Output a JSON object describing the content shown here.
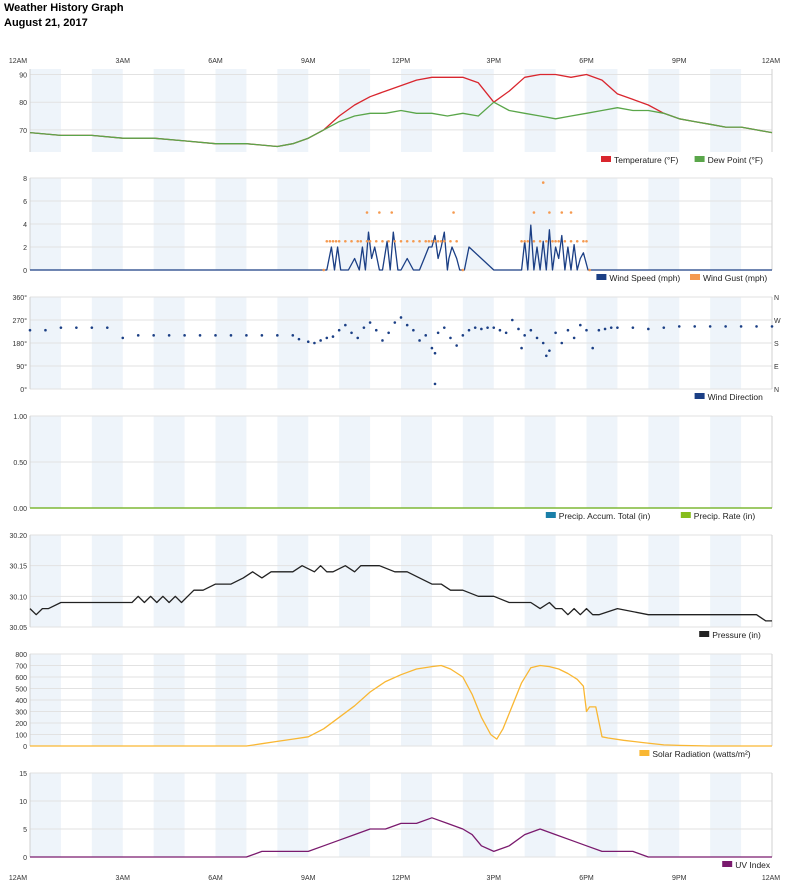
{
  "header": {
    "title": "Weather History Graph",
    "date": "August 21, 2017"
  },
  "colors": {
    "temperature": "#d9262e",
    "dew_point": "#5aa64a",
    "wind_speed": "#1b3f85",
    "wind_gust": "#f59a50",
    "wind_direction": "#1b3f85",
    "precip_total": "#1a7fa8",
    "precip_rate": "#86bd1c",
    "pressure": "#222222",
    "solar": "#f9b733",
    "uv": "#7a1a6e",
    "band": "#eef4fa",
    "grid": "#e2e2e2"
  },
  "chart_data": [
    {
      "id": "temp",
      "type": "line",
      "x_ticks": [
        "12AM",
        "3AM",
        "6AM",
        "9AM",
        "12PM",
        "3PM",
        "6PM",
        "9PM",
        "12AM"
      ],
      "y_ticks": [
        "90",
        "80",
        "70"
      ],
      "ylim": [
        62,
        92
      ],
      "series": [
        {
          "name": "Temperature (°F)",
          "color_key": "temperature",
          "x": [
            0,
            1,
            2,
            3,
            4,
            5,
            6,
            7,
            8,
            8.5,
            9,
            9.5,
            10,
            10.5,
            11,
            11.5,
            12,
            12.5,
            13,
            13.5,
            14,
            14.5,
            15,
            15.5,
            16,
            16.5,
            17,
            17.5,
            18,
            18.5,
            19,
            19.5,
            20,
            20.5,
            21,
            21.5,
            22,
            22.5,
            23,
            23.5,
            24
          ],
          "y": [
            69,
            68,
            68,
            67,
            67,
            66,
            65,
            65,
            64,
            65,
            67,
            70,
            75,
            79,
            82,
            84,
            86,
            88,
            89,
            89,
            89,
            87,
            80,
            84,
            89,
            90,
            90,
            89,
            90,
            88,
            83,
            81,
            79,
            76,
            74,
            73,
            72,
            71,
            71,
            70,
            69
          ]
        },
        {
          "name": "Dew Point (°F)",
          "color_key": "dew_point",
          "x": [
            0,
            1,
            2,
            3,
            4,
            5,
            6,
            7,
            8,
            8.5,
            9,
            9.5,
            10,
            10.5,
            11,
            11.5,
            12,
            12.5,
            13,
            13.5,
            14,
            14.5,
            15,
            15.5,
            16,
            16.5,
            17,
            17.5,
            18,
            18.5,
            19,
            19.5,
            20,
            20.5,
            21,
            21.5,
            22,
            22.5,
            23,
            23.5,
            24
          ],
          "y": [
            69,
            68,
            68,
            67,
            67,
            66,
            65,
            65,
            64,
            65,
            67,
            70,
            73,
            75,
            76,
            76,
            77,
            76,
            76,
            75,
            76,
            75,
            80,
            77,
            76,
            75,
            74,
            75,
            76,
            77,
            78,
            77,
            77,
            76,
            74,
            73,
            72,
            71,
            71,
            70,
            69
          ]
        }
      ]
    },
    {
      "id": "wind",
      "type": "line",
      "x_ticks": [
        "12AM",
        "3AM",
        "6AM",
        "9AM",
        "12PM",
        "3PM",
        "6PM",
        "9PM",
        "12AM"
      ],
      "y_ticks": [
        "8",
        "6",
        "4",
        "2",
        "0"
      ],
      "ylim": [
        0,
        8
      ],
      "series": [
        {
          "name": "Wind Speed (mph)",
          "color_key": "wind_speed",
          "x": [
            0,
            9.6,
            9.75,
            9.85,
            9.95,
            10.05,
            10.3,
            10.5,
            10.65,
            10.75,
            10.85,
            10.95,
            11.05,
            11.15,
            11.3,
            11.4,
            11.55,
            11.65,
            11.75,
            11.9,
            12,
            12.2,
            12.4,
            12.6,
            12.75,
            12.9,
            13,
            13.1,
            13.2,
            13.3,
            13.4,
            13.5,
            13.55,
            13.65,
            13.8,
            13.9,
            14.05,
            14.2,
            15,
            15.9,
            16,
            16.1,
            16.2,
            16.3,
            16.4,
            16.5,
            16.6,
            16.7,
            16.8,
            16.9,
            17,
            17.1,
            17.2,
            17.3,
            17.4,
            17.5,
            17.6,
            17.7,
            17.8,
            17.9,
            18.05,
            18.2,
            24
          ],
          "y": [
            0,
            0,
            2,
            0,
            2,
            0,
            0,
            1,
            0,
            2,
            0,
            3.3,
            1,
            2,
            0,
            0,
            2.5,
            0,
            3.3,
            0,
            0,
            1,
            0,
            0,
            1,
            2,
            2,
            3,
            1,
            2,
            3.3,
            0,
            1,
            2,
            1,
            0,
            0,
            2,
            0,
            0,
            2.5,
            0,
            3.9,
            0,
            2,
            0,
            2.5,
            0,
            3.5,
            0,
            2,
            1,
            3,
            0,
            2,
            0,
            2.2,
            0,
            1,
            1.5,
            0,
            0,
            0
          ]
        },
        {
          "name": "Wind Gust (mph)",
          "color_key": "wind_gust",
          "markers": true,
          "x": [
            9.5,
            9.6,
            9.7,
            9.8,
            9.9,
            10.0,
            10.2,
            10.4,
            10.6,
            10.7,
            10.9,
            11.0,
            11.2,
            11.4,
            11.6,
            11.8,
            12.0,
            12.2,
            12.4,
            12.6,
            12.8,
            12.9,
            13.0,
            13.1,
            13.2,
            13.3,
            13.4,
            13.6,
            13.8,
            14.0,
            15.9,
            16.0,
            16.1,
            16.3,
            16.5,
            16.7,
            16.9,
            17.1,
            17.3,
            17.5,
            17.7,
            17.9,
            18.0,
            18.1,
            11.3,
            10.9,
            11.7,
            13.7,
            16.3,
            16.8,
            16.6,
            17.2,
            17.5,
            17.0
          ],
          "y": [
            0,
            2.5,
            2.5,
            2.5,
            2.5,
            2.5,
            2.5,
            2.5,
            2.5,
            2.5,
            2.5,
            2.5,
            2.5,
            2.5,
            2.5,
            2.5,
            2.5,
            2.5,
            2.5,
            2.5,
            2.5,
            2.5,
            2.5,
            2.5,
            2.5,
            2.5,
            2.5,
            2.5,
            2.5,
            0,
            2.5,
            2.5,
            2.5,
            2.5,
            2.5,
            2.5,
            2.5,
            2.5,
            2.5,
            2.5,
            2.5,
            2.5,
            2.5,
            0,
            5,
            5,
            5,
            5,
            5,
            5,
            7.6,
            5,
            5,
            2.5
          ]
        }
      ]
    },
    {
      "id": "direction",
      "type": "scatter",
      "x_ticks": [
        "12AM",
        "3AM",
        "6AM",
        "9AM",
        "12PM",
        "3PM",
        "6PM",
        "9PM",
        "12AM"
      ],
      "y_ticks": [
        "360°",
        "270°",
        "180°",
        "90°",
        "0°"
      ],
      "y_ticks_right": [
        "N",
        "W",
        "S",
        "E",
        "N"
      ],
      "ylim": [
        0,
        360
      ],
      "series": [
        {
          "name": "Wind Direction",
          "color_key": "wind_direction",
          "x": [
            0,
            0.5,
            1,
            1.5,
            2,
            2.5,
            3,
            3.5,
            4,
            4.5,
            5,
            5.5,
            6,
            6.5,
            7,
            7.5,
            8,
            8.5,
            8.7,
            9,
            9.2,
            9.4,
            9.6,
            9.8,
            10,
            10.2,
            10.4,
            10.6,
            10.8,
            11,
            11.2,
            11.4,
            11.6,
            11.8,
            12,
            12.2,
            12.4,
            12.6,
            12.8,
            13,
            13.1,
            13.2,
            13.4,
            13.6,
            13.8,
            14,
            14.2,
            14.4,
            14.6,
            14.8,
            15,
            15.2,
            15.4,
            15.6,
            15.8,
            16,
            16.2,
            16.4,
            16.6,
            16.8,
            17,
            17.2,
            17.4,
            17.6,
            17.8,
            18,
            18.2,
            18.4,
            18.6,
            18.8,
            19,
            19.5,
            20,
            20.5,
            21,
            21.5,
            22,
            22.5,
            23,
            23.5,
            24,
            16.7,
            13.1,
            15.9
          ],
          "y": [
            230,
            230,
            240,
            240,
            240,
            240,
            200,
            210,
            210,
            210,
            210,
            210,
            210,
            210,
            210,
            210,
            210,
            210,
            195,
            185,
            180,
            190,
            200,
            205,
            230,
            250,
            220,
            200,
            240,
            260,
            230,
            190,
            220,
            260,
            280,
            250,
            230,
            190,
            210,
            160,
            20,
            220,
            240,
            200,
            170,
            210,
            230,
            240,
            235,
            240,
            240,
            230,
            220,
            270,
            235,
            210,
            230,
            200,
            180,
            150,
            220,
            180,
            230,
            200,
            250,
            230,
            160,
            230,
            235,
            240,
            240,
            240,
            235,
            240,
            245,
            245,
            245,
            245,
            245,
            245,
            245,
            130,
            140,
            160
          ]
        }
      ]
    },
    {
      "id": "precip",
      "type": "line",
      "x_ticks": [
        "12AM",
        "3AM",
        "6AM",
        "9AM",
        "12PM",
        "3PM",
        "6PM",
        "9PM",
        "12AM"
      ],
      "y_ticks": [
        "1.00",
        "0.50",
        "0.00"
      ],
      "ylim": [
        0,
        1
      ],
      "series": [
        {
          "name": "Precip. Accum. Total (in)",
          "color_key": "precip_total",
          "x": [
            0,
            24
          ],
          "y": [
            0,
            0
          ]
        },
        {
          "name": "Precip. Rate (in)",
          "color_key": "precip_rate",
          "x": [
            0,
            24
          ],
          "y": [
            0,
            0
          ]
        }
      ]
    },
    {
      "id": "pressure",
      "type": "line",
      "x_ticks": [
        "12AM",
        "3AM",
        "6AM",
        "9AM",
        "12PM",
        "3PM",
        "6PM",
        "9PM",
        "12AM"
      ],
      "y_ticks": [
        "30.20",
        "30.15",
        "30.10",
        "30.05"
      ],
      "ylim": [
        30.05,
        30.2
      ],
      "series": [
        {
          "name": "Pressure (in)",
          "color_key": "pressure",
          "x": [
            0,
            0.2,
            0.4,
            0.6,
            1.0,
            1.5,
            2.0,
            2.5,
            3.0,
            3.3,
            3.5,
            3.7,
            3.9,
            4.1,
            4.3,
            4.5,
            4.7,
            4.9,
            5.1,
            5.3,
            5.6,
            6.0,
            6.5,
            6.9,
            7.2,
            7.5,
            7.8,
            8.1,
            8.5,
            8.8,
            9.2,
            9.4,
            9.6,
            9.8,
            10.2,
            10.5,
            10.7,
            11.0,
            11.3,
            11.8,
            12.2,
            12.6,
            13.0,
            13.3,
            13.6,
            14.0,
            14.5,
            15.0,
            15.5,
            15.8,
            16.2,
            16.5,
            16.8,
            17.0,
            17.2,
            17.4,
            17.6,
            17.8,
            18.0,
            18.2,
            18.4,
            19.0,
            20.0,
            21.0,
            22.0,
            22.5,
            23.0,
            23.5,
            23.8,
            24
          ],
          "y": [
            30.08,
            30.07,
            30.08,
            30.08,
            30.09,
            30.09,
            30.09,
            30.09,
            30.09,
            30.09,
            30.1,
            30.09,
            30.1,
            30.09,
            30.1,
            30.09,
            30.1,
            30.09,
            30.1,
            30.11,
            30.11,
            30.12,
            30.12,
            30.13,
            30.14,
            30.13,
            30.14,
            30.14,
            30.14,
            30.15,
            30.14,
            30.15,
            30.14,
            30.14,
            30.15,
            30.14,
            30.15,
            30.15,
            30.15,
            30.14,
            30.14,
            30.13,
            30.12,
            30.12,
            30.11,
            30.11,
            30.1,
            30.1,
            30.09,
            30.09,
            30.09,
            30.08,
            30.09,
            30.08,
            30.08,
            30.07,
            30.08,
            30.07,
            30.08,
            30.07,
            30.07,
            30.08,
            30.07,
            30.07,
            30.07,
            30.07,
            30.07,
            30.07,
            30.06,
            30.06
          ]
        }
      ]
    },
    {
      "id": "solar",
      "type": "line",
      "x_ticks": [
        "12AM",
        "3AM",
        "6AM",
        "9AM",
        "12PM",
        "3PM",
        "6PM",
        "9PM",
        "12AM"
      ],
      "y_ticks": [
        "800",
        "700",
        "600",
        "500",
        "400",
        "300",
        "200",
        "100",
        "0"
      ],
      "ylim": [
        0,
        800
      ],
      "series": [
        {
          "name": "Solar Radiation (watts/m²)",
          "color_key": "solar",
          "x": [
            0,
            6.5,
            7,
            7.5,
            8,
            8.5,
            9,
            9.5,
            10,
            10.5,
            11,
            11.5,
            12,
            12.5,
            13,
            13.3,
            13.6,
            14,
            14.3,
            14.6,
            14.9,
            15.1,
            15.3,
            15.6,
            15.9,
            16.2,
            16.5,
            16.8,
            17.1,
            17.4,
            17.7,
            17.9,
            18.0,
            18.1,
            18.3,
            18.5,
            18.7,
            19.2,
            19.8,
            20.5,
            21,
            22,
            23,
            24
          ],
          "y": [
            0,
            0,
            0,
            20,
            40,
            60,
            80,
            150,
            250,
            350,
            470,
            560,
            620,
            670,
            690,
            700,
            670,
            600,
            450,
            250,
            100,
            60,
            150,
            350,
            550,
            680,
            700,
            690,
            670,
            630,
            580,
            520,
            300,
            340,
            340,
            80,
            70,
            50,
            30,
            10,
            5,
            0,
            0,
            0
          ]
        }
      ]
    },
    {
      "id": "uv",
      "type": "line",
      "x_ticks": [
        "12AM",
        "3AM",
        "6AM",
        "9AM",
        "12PM",
        "3PM",
        "6PM",
        "9PM",
        "12AM"
      ],
      "y_ticks": [
        "15",
        "10",
        "5",
        "0"
      ],
      "ylim": [
        0,
        15
      ],
      "series": [
        {
          "name": "UV Index",
          "color_key": "uv",
          "x": [
            0,
            7,
            7.5,
            8.5,
            9,
            9.5,
            10,
            10.5,
            11,
            11.5,
            12,
            12.5,
            13,
            13.5,
            14,
            14.3,
            14.6,
            15,
            15.5,
            16,
            16.5,
            17,
            17.5,
            18,
            18.5,
            19,
            19.5,
            20,
            21,
            24
          ],
          "y": [
            0,
            0,
            1,
            1,
            1,
            2,
            3,
            4,
            5,
            5,
            6,
            6,
            7,
            6,
            5,
            4,
            2,
            1,
            2,
            4,
            5,
            4,
            3,
            2,
            1,
            1,
            1,
            0,
            0,
            0
          ]
        }
      ]
    }
  ]
}
